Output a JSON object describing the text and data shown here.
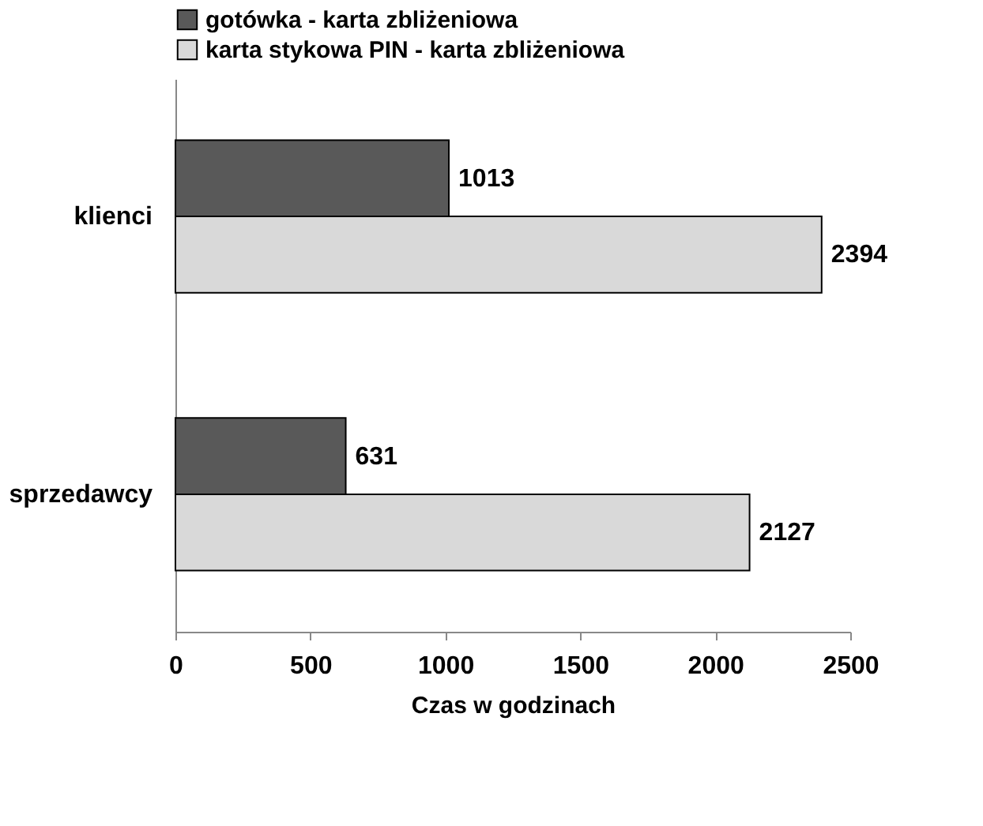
{
  "chart_data": {
    "type": "bar",
    "orientation": "horizontal",
    "xlabel": "Czas w godzinach",
    "categories": [
      "klienci",
      "sprzedawcy"
    ],
    "series": [
      {
        "name": "gotówka - karta zbliżeniowa",
        "color": "#595959",
        "values": [
          1013,
          631
        ]
      },
      {
        "name": "karta stykowa PIN - karta zbliżeniowa",
        "color": "#d9d9d9",
        "values": [
          2394,
          2127
        ]
      }
    ],
    "xlim": [
      0,
      2500
    ],
    "xticks": [
      0,
      500,
      1000,
      1500,
      2000,
      2500
    ],
    "data_labels": true,
    "legend": "top",
    "grid": false
  }
}
